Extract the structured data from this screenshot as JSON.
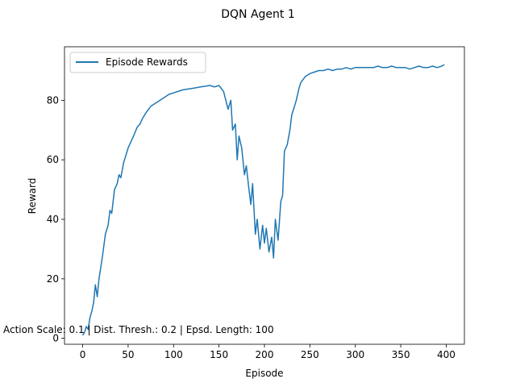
{
  "chart_data": {
    "type": "line",
    "title": "DQN Agent 1",
    "xlabel": "Episode",
    "ylabel": "Reward",
    "xlim": [
      -20,
      420
    ],
    "ylim": [
      -2,
      98
    ],
    "xticks": [
      0,
      50,
      100,
      150,
      200,
      250,
      300,
      350,
      400
    ],
    "yticks": [
      0,
      20,
      40,
      60,
      80
    ],
    "grid": false,
    "legend_position": "upper-left",
    "annotation": "Action Scale: 0.1 | Dist. Thresh.: 0.2 | Epsd. Length: 100",
    "series": [
      {
        "name": "Episode Rewards",
        "color": "#1f77b4",
        "x": [
          0,
          2,
          4,
          6,
          8,
          10,
          12,
          14,
          16,
          18,
          20,
          22,
          25,
          28,
          30,
          32,
          35,
          38,
          40,
          42,
          45,
          48,
          50,
          53,
          56,
          60,
          63,
          66,
          70,
          75,
          80,
          85,
          90,
          95,
          100,
          110,
          120,
          130,
          140,
          145,
          150,
          155,
          160,
          163,
          165,
          168,
          170,
          172,
          175,
          178,
          180,
          183,
          185,
          187,
          190,
          192,
          195,
          198,
          200,
          202,
          205,
          208,
          210,
          212,
          215,
          218,
          220,
          222,
          225,
          228,
          230,
          232,
          235,
          238,
          240,
          245,
          250,
          255,
          260,
          265,
          270,
          275,
          280,
          285,
          290,
          295,
          300,
          305,
          310,
          315,
          320,
          325,
          330,
          335,
          340,
          345,
          350,
          355,
          360,
          365,
          370,
          375,
          380,
          385,
          390,
          395,
          398
        ],
        "y": [
          1,
          2,
          4,
          3,
          7,
          9,
          12,
          18,
          14,
          20,
          24,
          28,
          35,
          38,
          43,
          42,
          50,
          52,
          55,
          54,
          59,
          62,
          64,
          66,
          68,
          71,
          72,
          74,
          76,
          78,
          79,
          80,
          81,
          82,
          82.5,
          83.5,
          84,
          84.5,
          85,
          84.5,
          85,
          83,
          77,
          80,
          70,
          72,
          60,
          68,
          64,
          55,
          58,
          50,
          45,
          52,
          35,
          40,
          30,
          38,
          32,
          37,
          29,
          34,
          27,
          40,
          33,
          46,
          48,
          63,
          65,
          70,
          75,
          77,
          80,
          84,
          86,
          88,
          89,
          89.5,
          90,
          90,
          90.5,
          90,
          90.5,
          90.5,
          91,
          90.5,
          91,
          91,
          91,
          91,
          91,
          91.5,
          91,
          91,
          91.5,
          91,
          91,
          91,
          90.5,
          91,
          91.5,
          91,
          91,
          91.5,
          91,
          91.5,
          92
        ]
      }
    ]
  }
}
